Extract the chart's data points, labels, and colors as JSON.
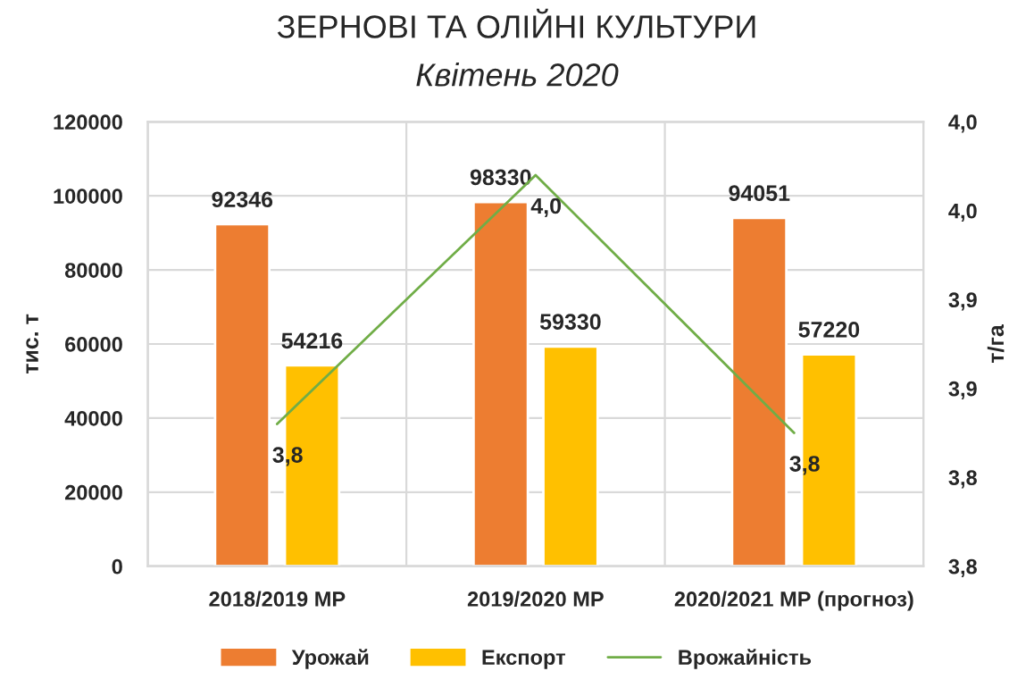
{
  "chart_data": {
    "type": "bar",
    "title": "ЗЕРНОВІ ТА ОЛІЙНІ КУЛЬТУРИ",
    "subtitle": "Квітень 2020",
    "ylabel": "тис. т",
    "y2label": "т/га",
    "categories": [
      "2018/2019 МР",
      "2019/2020 МР",
      "2020/2021 МР (прогноз)"
    ],
    "series": [
      {
        "name": "Урожай",
        "color": "#ed7d31",
        "values": [
          92346,
          98330,
          94051
        ],
        "value_labels": [
          "92346",
          "98330",
          "94051"
        ]
      },
      {
        "name": "Експорт",
        "color": "#ffc000",
        "values": [
          54216,
          59330,
          57220
        ],
        "value_labels": [
          "54216",
          "59330",
          "57220"
        ]
      },
      {
        "name": "Врожайність",
        "type": "line",
        "axis": "y2",
        "color": "#70ad47",
        "values": [
          3.83,
          3.97,
          3.825
        ],
        "value_labels": [
          "3,8",
          "4,0",
          "3,8"
        ]
      }
    ],
    "ylim": [
      0,
      120000
    ],
    "yticks": [
      0,
      20000,
      40000,
      60000,
      80000,
      100000,
      120000
    ],
    "y2lim": [
      3.75,
      4.0
    ],
    "y2ticks": [
      {
        "value": 3.75,
        "label": "3,8"
      },
      {
        "value": 3.8,
        "label": "3,8"
      },
      {
        "value": 3.85,
        "label": "3,9"
      },
      {
        "value": 3.9,
        "label": "3,9"
      },
      {
        "value": 3.95,
        "label": "4,0"
      },
      {
        "value": 4.0,
        "label": "4,0"
      }
    ],
    "grid": "y",
    "legend": "bottom",
    "marker": "none"
  }
}
